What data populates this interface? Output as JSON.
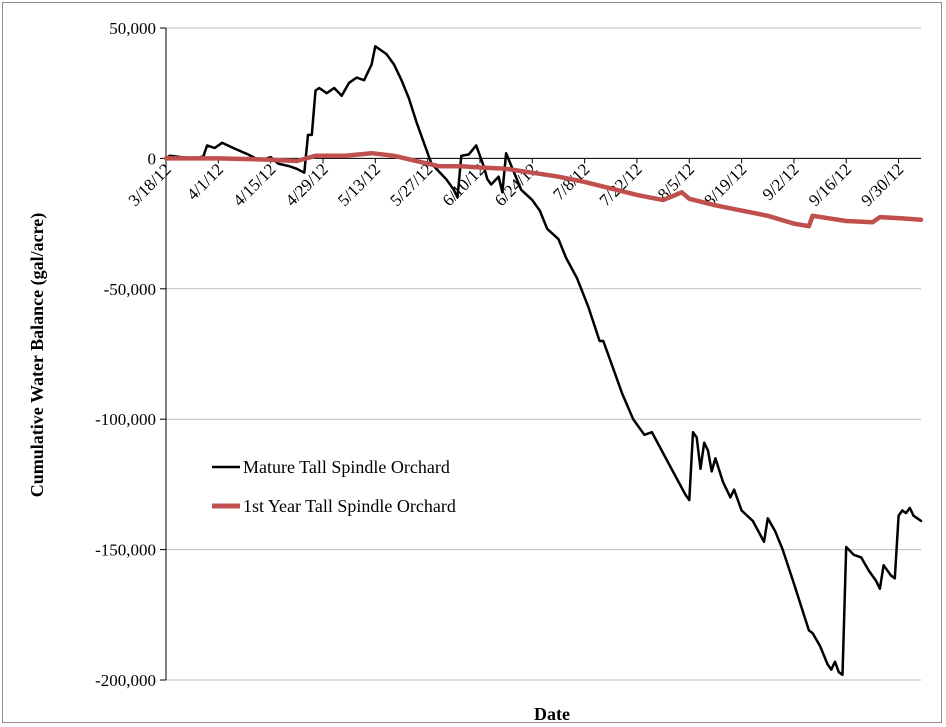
{
  "chart_data": {
    "type": "line",
    "title": "",
    "xlabel": "Date",
    "ylabel": "Cumulative Water Balance (gal/acre)",
    "ylim": [
      -200000,
      50000
    ],
    "xlim": [
      "3/18/12",
      "10/6/12"
    ],
    "grid": "horizontal",
    "legend_position": "lower-left (inside plot)",
    "x_tick_labels": [
      "3/18/12",
      "4/1/12",
      "4/15/12",
      "4/29/12",
      "5/13/12",
      "5/27/12",
      "6/10/12",
      "6/24/12",
      "7/8/12",
      "7/22/12",
      "8/5/12",
      "8/19/12",
      "9/2/12",
      "9/16/12",
      "9/30/12"
    ],
    "y_ticks": [
      50000,
      0,
      -50000,
      -100000,
      -150000,
      -200000
    ],
    "y_tick_labels": [
      "50,000",
      "0",
      "-50,000",
      "-100,000",
      "-150,000",
      "-200,000"
    ],
    "series": [
      {
        "name": "Mature Tall Spindle Orchard",
        "color": "#000000",
        "points": [
          [
            "3/18/12",
            0
          ],
          [
            "3/19/12",
            1000
          ],
          [
            "3/22/12",
            500
          ],
          [
            "3/26/12",
            0
          ],
          [
            "3/28/12",
            800
          ],
          [
            "3/29/12",
            5000
          ],
          [
            "3/31/12",
            4000
          ],
          [
            "4/2/12",
            6000
          ],
          [
            "4/5/12",
            4000
          ],
          [
            "4/9/12",
            1500
          ],
          [
            "4/11/12",
            0
          ],
          [
            "4/13/12",
            -500
          ],
          [
            "4/15/12",
            500
          ],
          [
            "4/17/12",
            -2000
          ],
          [
            "4/20/12",
            -3000
          ],
          [
            "4/22/12",
            -4000
          ],
          [
            "4/24/12",
            -5500
          ],
          [
            "4/25/12",
            9000
          ],
          [
            "4/26/12",
            9000
          ],
          [
            "4/27/12",
            26000
          ],
          [
            "4/28/12",
            27000
          ],
          [
            "4/30/12",
            25000
          ],
          [
            "5/2/12",
            27000
          ],
          [
            "5/4/12",
            24000
          ],
          [
            "5/6/12",
            29000
          ],
          [
            "5/8/12",
            31000
          ],
          [
            "5/10/12",
            30000
          ],
          [
            "5/12/12",
            36000
          ],
          [
            "5/13/12",
            43000
          ],
          [
            "5/14/12",
            42000
          ],
          [
            "5/16/12",
            40000
          ],
          [
            "5/18/12",
            36000
          ],
          [
            "5/20/12",
            30000
          ],
          [
            "5/22/12",
            23000
          ],
          [
            "5/24/12",
            14000
          ],
          [
            "5/26/12",
            6000
          ],
          [
            "5/28/12",
            -2000
          ],
          [
            "5/30/12",
            -5000
          ],
          [
            "6/1/12",
            -8000
          ],
          [
            "6/3/12",
            -12000
          ],
          [
            "6/4/12",
            -15000
          ],
          [
            "6/5/12",
            1000
          ],
          [
            "6/7/12",
            1500
          ],
          [
            "6/9/12",
            5000
          ],
          [
            "6/11/12",
            -3000
          ],
          [
            "6/12/12",
            -8000
          ],
          [
            "6/13/12",
            -10000
          ],
          [
            "6/15/12",
            -7000
          ],
          [
            "6/16/12",
            -13000
          ],
          [
            "6/17/12",
            2000
          ],
          [
            "6/19/12",
            -5000
          ],
          [
            "6/21/12",
            -12000
          ],
          [
            "6/24/12",
            -16000
          ],
          [
            "6/26/12",
            -20000
          ],
          [
            "6/28/12",
            -27000
          ],
          [
            "7/1/12",
            -31000
          ],
          [
            "7/3/12",
            -38000
          ],
          [
            "7/6/12",
            -46000
          ],
          [
            "7/9/12",
            -57000
          ],
          [
            "7/12/12",
            -70000
          ],
          [
            "7/13/12",
            -70000
          ],
          [
            "7/15/12",
            -78000
          ],
          [
            "7/18/12",
            -90000
          ],
          [
            "7/21/12",
            -100000
          ],
          [
            "7/24/12",
            -106000
          ],
          [
            "7/26/12",
            -105000
          ],
          [
            "7/29/12",
            -113000
          ],
          [
            "8/1/12",
            -121000
          ],
          [
            "8/4/12",
            -129000
          ],
          [
            "8/5/12",
            -131000
          ],
          [
            "8/6/12",
            -105000
          ],
          [
            "8/7/12",
            -107000
          ],
          [
            "8/8/12",
            -119000
          ],
          [
            "8/9/12",
            -109000
          ],
          [
            "8/10/12",
            -112000
          ],
          [
            "8/11/12",
            -120000
          ],
          [
            "8/12/12",
            -115000
          ],
          [
            "8/14/12",
            -124000
          ],
          [
            "8/16/12",
            -130000
          ],
          [
            "8/17/12",
            -127000
          ],
          [
            "8/19/12",
            -135000
          ],
          [
            "8/22/12",
            -139000
          ],
          [
            "8/25/12",
            -147000
          ],
          [
            "8/26/12",
            -138000
          ],
          [
            "8/28/12",
            -143000
          ],
          [
            "8/30/12",
            -150000
          ],
          [
            "9/2/12",
            -163000
          ],
          [
            "9/4/12",
            -172000
          ],
          [
            "9/6/12",
            -181000
          ],
          [
            "9/7/12",
            -182000
          ],
          [
            "9/9/12",
            -187000
          ],
          [
            "9/11/12",
            -194000
          ],
          [
            "9/12/12",
            -196000
          ],
          [
            "9/13/12",
            -193000
          ],
          [
            "9/14/12",
            -197000
          ],
          [
            "9/15/12",
            -198000
          ],
          [
            "9/16/12",
            -149000
          ],
          [
            "9/18/12",
            -152000
          ],
          [
            "9/20/12",
            -153000
          ],
          [
            "9/22/12",
            -158000
          ],
          [
            "9/24/12",
            -162000
          ],
          [
            "9/25/12",
            -165000
          ],
          [
            "9/26/12",
            -156000
          ],
          [
            "9/28/12",
            -160000
          ],
          [
            "9/29/12",
            -161000
          ],
          [
            "9/30/12",
            -137000
          ],
          [
            "10/1/12",
            -135000
          ],
          [
            "10/2/12",
            -136000
          ],
          [
            "10/3/12",
            -134000
          ],
          [
            "10/4/12",
            -137000
          ],
          [
            "10/5/12",
            -138000
          ],
          [
            "10/6/12",
            -139000
          ]
        ]
      },
      {
        "name": "1st Year Tall Spindle Orchard",
        "color": "#c0504d",
        "points": [
          [
            "3/18/12",
            0
          ],
          [
            "4/1/12",
            0
          ],
          [
            "4/15/12",
            -500
          ],
          [
            "4/22/12",
            -1000
          ],
          [
            "4/27/12",
            1000
          ],
          [
            "5/5/12",
            1000
          ],
          [
            "5/12/12",
            2000
          ],
          [
            "5/18/12",
            1000
          ],
          [
            "5/24/12",
            -1000
          ],
          [
            "5/30/12",
            -3000
          ],
          [
            "6/5/12",
            -3000
          ],
          [
            "6/10/12",
            -3500
          ],
          [
            "6/17/12",
            -4000
          ],
          [
            "6/24/12",
            -5500
          ],
          [
            "7/1/12",
            -7000
          ],
          [
            "7/8/12",
            -9000
          ],
          [
            "7/15/12",
            -11500
          ],
          [
            "7/22/12",
            -14000
          ],
          [
            "7/29/12",
            -16000
          ],
          [
            "8/3/12",
            -13000
          ],
          [
            "8/5/12",
            -15500
          ],
          [
            "8/12/12",
            -18000
          ],
          [
            "8/19/12",
            -20000
          ],
          [
            "8/26/12",
            -22000
          ],
          [
            "9/2/12",
            -25000
          ],
          [
            "9/6/12",
            -26000
          ],
          [
            "9/7/12",
            -22000
          ],
          [
            "9/16/12",
            -24000
          ],
          [
            "9/23/12",
            -24500
          ],
          [
            "9/25/12",
            -22500
          ],
          [
            "10/1/12",
            -23000
          ],
          [
            "10/6/12",
            -23500
          ]
        ]
      }
    ]
  }
}
